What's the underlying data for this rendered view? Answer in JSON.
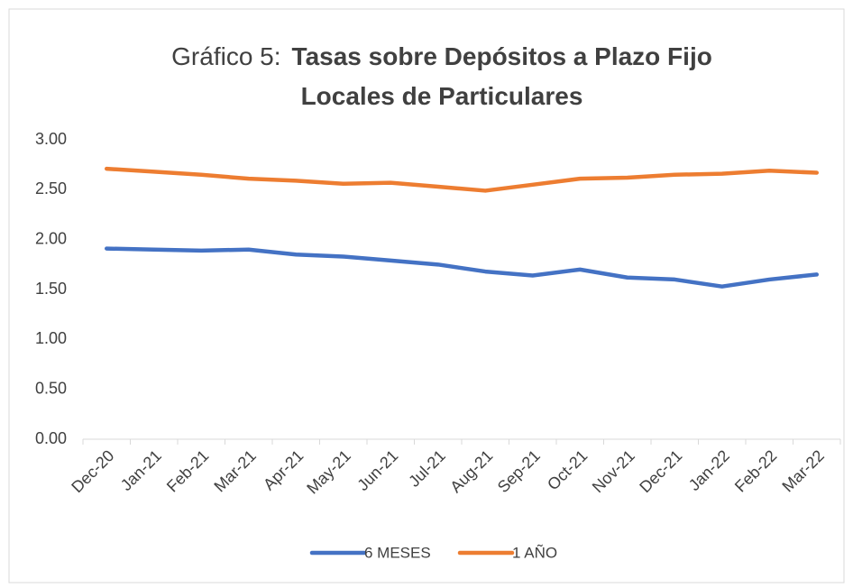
{
  "chart_data": {
    "type": "line",
    "title": [
      "Gráfico 5:",
      "Tasas sobre Depósitos a Plazo Fijo",
      "Locales de Particulares"
    ],
    "categories": [
      "Dec-20",
      "Jan-21",
      "Feb-21",
      "Mar-21",
      "Apr-21",
      "May-21",
      "Jun-21",
      "Jul-21",
      "Aug-21",
      "Sep-21",
      "Oct-21",
      "Nov-21",
      "Dec-21",
      "Jan-22",
      "Feb-22",
      "Mar-22"
    ],
    "series": [
      {
        "name": "6 MESES",
        "color": "#4472c4",
        "values": [
          1.91,
          1.9,
          1.89,
          1.9,
          1.85,
          1.83,
          1.79,
          1.75,
          1.68,
          1.64,
          1.7,
          1.62,
          1.6,
          1.53,
          1.6,
          1.65
        ]
      },
      {
        "name": "1 AÑO",
        "color": "#ed7d31",
        "values": [
          2.71,
          2.68,
          2.65,
          2.61,
          2.59,
          2.56,
          2.57,
          2.53,
          2.49,
          2.55,
          2.61,
          2.62,
          2.65,
          2.66,
          2.69,
          2.67
        ]
      }
    ],
    "ylim": [
      0,
      3
    ],
    "yticks": [
      {
        "value": 0,
        "label": "0.00"
      },
      {
        "value": 0.5,
        "label": "0.50"
      },
      {
        "value": 1,
        "label": "1.00"
      },
      {
        "value": 1.5,
        "label": "1.50"
      },
      {
        "value": 2,
        "label": "2.00"
      },
      {
        "value": 2.5,
        "label": "2.50"
      },
      {
        "value": 3,
        "label": "3.00"
      }
    ],
    "legend": "bottom"
  }
}
